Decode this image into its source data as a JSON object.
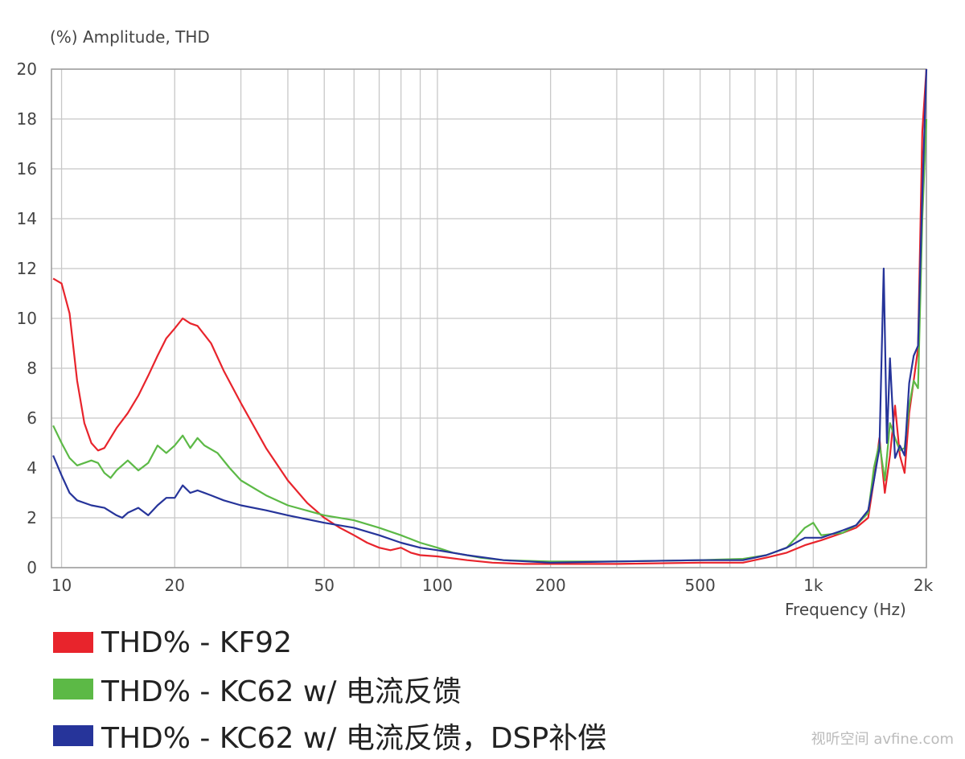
{
  "chart_data": {
    "type": "line",
    "ylabel": "(%)  Amplitude, THD",
    "xlabel": "Frequency  (Hz)",
    "x_scale": "log",
    "xlim": [
      9.4,
      2000
    ],
    "ylim": [
      0,
      20
    ],
    "x_ticks": [
      {
        "value": 10,
        "label": "10"
      },
      {
        "value": 20,
        "label": "20"
      },
      {
        "value": 50,
        "label": "50"
      },
      {
        "value": 100,
        "label": "100"
      },
      {
        "value": 200,
        "label": "200"
      },
      {
        "value": 500,
        "label": "500"
      },
      {
        "value": 1000,
        "label": "1k"
      },
      {
        "value": 2000,
        "label": "2k"
      }
    ],
    "y_ticks": [
      0,
      2,
      4,
      6,
      8,
      10,
      12,
      14,
      16,
      18,
      20
    ],
    "grid": true,
    "legend_position": "bottom-left",
    "series": [
      {
        "name": "THD% - KF92",
        "color": "#e8242c",
        "points": [
          [
            9.5,
            11.6
          ],
          [
            10,
            11.4
          ],
          [
            10.5,
            10.2
          ],
          [
            11,
            7.5
          ],
          [
            11.5,
            5.8
          ],
          [
            12,
            5.0
          ],
          [
            12.5,
            4.7
          ],
          [
            13,
            4.8
          ],
          [
            14,
            5.6
          ],
          [
            15,
            6.2
          ],
          [
            16,
            6.9
          ],
          [
            17,
            7.7
          ],
          [
            18,
            8.5
          ],
          [
            19,
            9.2
          ],
          [
            20,
            9.6
          ],
          [
            21,
            10.0
          ],
          [
            22,
            9.8
          ],
          [
            23,
            9.7
          ],
          [
            25,
            9.0
          ],
          [
            27,
            7.9
          ],
          [
            30,
            6.6
          ],
          [
            35,
            4.8
          ],
          [
            40,
            3.5
          ],
          [
            45,
            2.6
          ],
          [
            50,
            2.0
          ],
          [
            55,
            1.6
          ],
          [
            60,
            1.3
          ],
          [
            65,
            1.0
          ],
          [
            70,
            0.8
          ],
          [
            75,
            0.7
          ],
          [
            80,
            0.8
          ],
          [
            85,
            0.6
          ],
          [
            90,
            0.5
          ],
          [
            100,
            0.45
          ],
          [
            120,
            0.3
          ],
          [
            140,
            0.2
          ],
          [
            170,
            0.15
          ],
          [
            200,
            0.15
          ],
          [
            300,
            0.15
          ],
          [
            500,
            0.2
          ],
          [
            650,
            0.2
          ],
          [
            750,
            0.4
          ],
          [
            850,
            0.6
          ],
          [
            950,
            0.9
          ],
          [
            1050,
            1.1
          ],
          [
            1200,
            1.4
          ],
          [
            1300,
            1.6
          ],
          [
            1400,
            2.0
          ],
          [
            1450,
            3.5
          ],
          [
            1500,
            5.2
          ],
          [
            1550,
            3.0
          ],
          [
            1600,
            4.5
          ],
          [
            1650,
            6.5
          ],
          [
            1700,
            4.5
          ],
          [
            1750,
            3.8
          ],
          [
            1800,
            6.2
          ],
          [
            1850,
            7.5
          ],
          [
            1900,
            8.8
          ],
          [
            1950,
            17.5
          ],
          [
            2000,
            20
          ]
        ]
      },
      {
        "name": "THD% - KC62 w/ 电流反馈",
        "color": "#5cb946",
        "points": [
          [
            9.5,
            5.7
          ],
          [
            10,
            5.0
          ],
          [
            10.5,
            4.4
          ],
          [
            11,
            4.1
          ],
          [
            12,
            4.3
          ],
          [
            12.5,
            4.2
          ],
          [
            13,
            3.8
          ],
          [
            13.5,
            3.6
          ],
          [
            14,
            3.9
          ],
          [
            15,
            4.3
          ],
          [
            16,
            3.9
          ],
          [
            17,
            4.2
          ],
          [
            18,
            4.9
          ],
          [
            19,
            4.6
          ],
          [
            20,
            4.9
          ],
          [
            21,
            5.3
          ],
          [
            22,
            4.8
          ],
          [
            23,
            5.2
          ],
          [
            24,
            4.9
          ],
          [
            26,
            4.6
          ],
          [
            28,
            4.0
          ],
          [
            30,
            3.5
          ],
          [
            35,
            2.9
          ],
          [
            40,
            2.5
          ],
          [
            50,
            2.1
          ],
          [
            60,
            1.9
          ],
          [
            70,
            1.6
          ],
          [
            80,
            1.3
          ],
          [
            90,
            1.0
          ],
          [
            100,
            0.8
          ],
          [
            110,
            0.6
          ],
          [
            130,
            0.4
          ],
          [
            150,
            0.3
          ],
          [
            200,
            0.25
          ],
          [
            300,
            0.25
          ],
          [
            500,
            0.3
          ],
          [
            650,
            0.35
          ],
          [
            750,
            0.5
          ],
          [
            850,
            0.8
          ],
          [
            950,
            1.6
          ],
          [
            1000,
            1.8
          ],
          [
            1050,
            1.3
          ],
          [
            1200,
            1.4
          ],
          [
            1300,
            1.7
          ],
          [
            1400,
            2.2
          ],
          [
            1450,
            4.0
          ],
          [
            1500,
            5.0
          ],
          [
            1550,
            3.5
          ],
          [
            1600,
            5.8
          ],
          [
            1650,
            5.2
          ],
          [
            1700,
            4.7
          ],
          [
            1750,
            4.8
          ],
          [
            1800,
            6.5
          ],
          [
            1850,
            7.5
          ],
          [
            1900,
            7.2
          ],
          [
            1950,
            14
          ],
          [
            2000,
            18
          ]
        ]
      },
      {
        "name": "THD% - KC62 w/ 电流反馈，DSP补偿",
        "color": "#26349a",
        "points": [
          [
            9.5,
            4.5
          ],
          [
            10,
            3.7
          ],
          [
            10.5,
            3.0
          ],
          [
            11,
            2.7
          ],
          [
            12,
            2.5
          ],
          [
            13,
            2.4
          ],
          [
            14,
            2.1
          ],
          [
            14.5,
            2.0
          ],
          [
            15,
            2.2
          ],
          [
            16,
            2.4
          ],
          [
            17,
            2.1
          ],
          [
            18,
            2.5
          ],
          [
            19,
            2.8
          ],
          [
            20,
            2.8
          ],
          [
            21,
            3.3
          ],
          [
            22,
            3.0
          ],
          [
            23,
            3.1
          ],
          [
            25,
            2.9
          ],
          [
            27,
            2.7
          ],
          [
            30,
            2.5
          ],
          [
            35,
            2.3
          ],
          [
            40,
            2.1
          ],
          [
            50,
            1.8
          ],
          [
            60,
            1.6
          ],
          [
            70,
            1.3
          ],
          [
            80,
            1.0
          ],
          [
            90,
            0.8
          ],
          [
            100,
            0.7
          ],
          [
            120,
            0.5
          ],
          [
            150,
            0.3
          ],
          [
            200,
            0.2
          ],
          [
            300,
            0.25
          ],
          [
            500,
            0.3
          ],
          [
            650,
            0.3
          ],
          [
            750,
            0.5
          ],
          [
            850,
            0.8
          ],
          [
            950,
            1.2
          ],
          [
            1050,
            1.2
          ],
          [
            1200,
            1.5
          ],
          [
            1300,
            1.7
          ],
          [
            1400,
            2.3
          ],
          [
            1450,
            3.5
          ],
          [
            1500,
            4.8
          ],
          [
            1540,
            12
          ],
          [
            1570,
            5.0
          ],
          [
            1600,
            8.4
          ],
          [
            1650,
            4.4
          ],
          [
            1700,
            4.9
          ],
          [
            1750,
            4.5
          ],
          [
            1800,
            7.4
          ],
          [
            1850,
            8.5
          ],
          [
            1900,
            8.9
          ],
          [
            1950,
            15
          ],
          [
            2000,
            20
          ]
        ]
      }
    ]
  },
  "watermark": "视听空间 avfine.com"
}
